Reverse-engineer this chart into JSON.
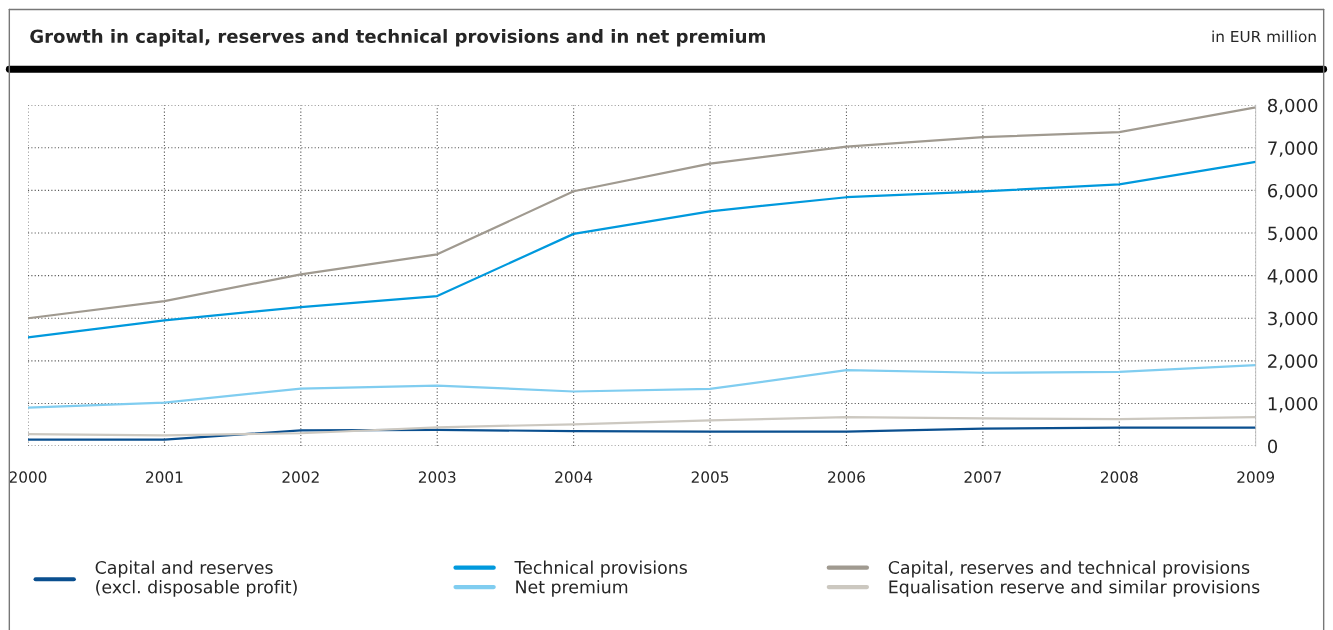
{
  "chart_data": {
    "type": "line",
    "title": "Growth in capital, reserves and technical provisions and in net premium",
    "annotations": [
      "in EUR million"
    ],
    "categories": [
      "2000",
      "2001",
      "2002",
      "2003",
      "2004",
      "2005",
      "2006",
      "2007",
      "2008",
      "2009"
    ],
    "series": [
      {
        "name": "Capital and reserves\n(excl. disposable profit)",
        "color": "#0a4f8f",
        "values": [
          150,
          150,
          370,
          380,
          350,
          340,
          340,
          410,
          430,
          430
        ]
      },
      {
        "name": "Technical provisions",
        "color": "#0099dd",
        "values": [
          2550,
          2950,
          3260,
          3520,
          4980,
          5510,
          5840,
          5980,
          6140,
          6670
        ]
      },
      {
        "name": "Net premium",
        "color": "#80cdf0",
        "values": [
          900,
          1020,
          1350,
          1420,
          1280,
          1340,
          1780,
          1720,
          1740,
          1900
        ]
      },
      {
        "name": "Capital, reserves and technical provisions",
        "color": "#a09a90",
        "values": [
          3000,
          3400,
          4030,
          4500,
          5980,
          6630,
          7030,
          7250,
          7370,
          7950
        ]
      },
      {
        "name": "Equalisation reserve and similar provisions",
        "color": "#ccc8c0",
        "values": [
          280,
          250,
          300,
          440,
          510,
          600,
          680,
          650,
          630,
          680
        ]
      }
    ],
    "ylim": [
      0,
      8000
    ],
    "yticks": [
      {
        "value": 0,
        "label": "0"
      },
      {
        "value": 1000,
        "label": "1,000"
      },
      {
        "value": 2000,
        "label": "2,000"
      },
      {
        "value": 3000,
        "label": "3,000"
      },
      {
        "value": 4000,
        "label": "4,000"
      },
      {
        "value": 5000,
        "label": "5,000"
      },
      {
        "value": 6000,
        "label": "6,000"
      },
      {
        "value": 7000,
        "label": "7,000"
      },
      {
        "value": 8000,
        "label": "8,000"
      }
    ],
    "grid": true,
    "legend": "bottom",
    "marker": "none",
    "line_style": "solid"
  }
}
